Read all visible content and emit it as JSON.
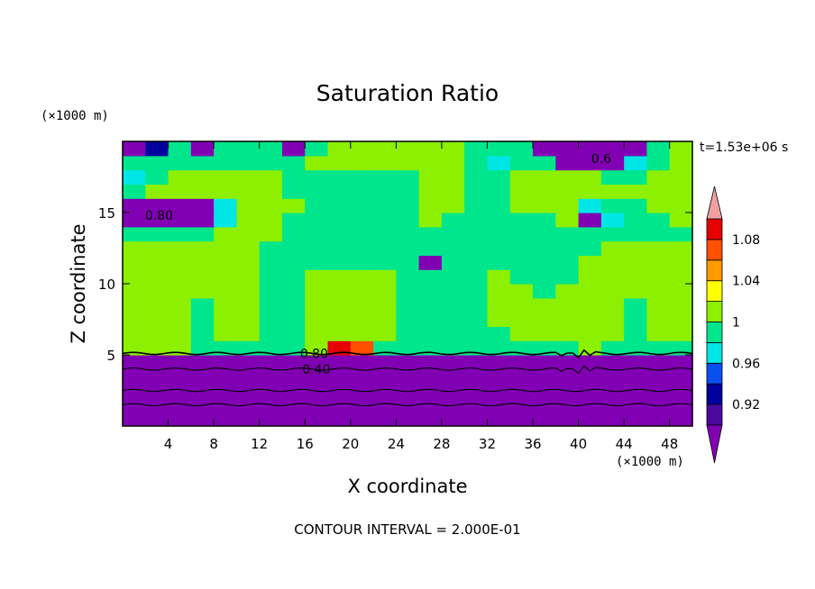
{
  "chart_data": {
    "type": "heatmap",
    "title": "Saturation Ratio",
    "xlabel": "X coordinate",
    "ylabel": "Z coordinate",
    "x_unit": "(×1000 m)",
    "y_unit": "(×1000 m)",
    "time_label": "t=1.53e+06 s",
    "footer": "CONTOUR INTERVAL = 2.000E-01",
    "xlim": [
      0,
      50
    ],
    "ylim": [
      0,
      20
    ],
    "xticks": [
      4,
      8,
      12,
      16,
      20,
      24,
      28,
      32,
      36,
      40,
      44,
      48
    ],
    "yticks": [
      5,
      10,
      15
    ],
    "contour_labels": [
      {
        "text": "0.80",
        "x": 3.2,
        "z": 14.8
      },
      {
        "text": "0.80",
        "x": 16.8,
        "z": 5.1
      },
      {
        "text": "0.40",
        "x": 17.0,
        "z": 4.0
      },
      {
        "text": "0.6",
        "x": 42.0,
        "z": 18.8
      }
    ],
    "colorbar": {
      "labels": [
        "1.08",
        "1.04",
        "1",
        "0.96",
        "0.92"
      ],
      "levels": [
        0.9,
        0.92,
        0.94,
        0.96,
        0.98,
        1.0,
        1.02,
        1.04,
        1.06,
        1.08,
        1.1
      ],
      "colors": [
        "#4a0a9e",
        "#00009e",
        "#0a50f0",
        "#00e6e6",
        "#00e68c",
        "#8cf000",
        "#ffff00",
        "#ff9a00",
        "#ff5000",
        "#e60000",
        "#f0a0a0"
      ],
      "under_color": "#8200b4",
      "over_color": "#f0a0a0"
    },
    "rows": {
      "z": [
        0.5,
        1.5,
        2.5,
        3.5,
        4.5,
        5.5,
        6.5,
        7.5,
        8.5,
        9.5,
        10.5,
        11.5,
        12.5,
        13.5,
        14.5,
        15.5,
        16.5,
        17.5,
        18.5,
        19.5
      ],
      "x": [
        1,
        3,
        5,
        7,
        9,
        11,
        13,
        15,
        17,
        19,
        21,
        23,
        25,
        27,
        29,
        31,
        33,
        35,
        37,
        39,
        41,
        43,
        45,
        47,
        49
      ],
      "values": [
        [
          0.1,
          0.1,
          0.1,
          0.1,
          0.1,
          0.1,
          0.1,
          0.1,
          0.1,
          0.1,
          0.1,
          0.1,
          0.1,
          0.1,
          0.1,
          0.1,
          0.1,
          0.1,
          0.1,
          0.1,
          0.1,
          0.1,
          0.1,
          0.1,
          0.1
        ],
        [
          0.2,
          0.2,
          0.2,
          0.2,
          0.2,
          0.2,
          0.2,
          0.2,
          0.2,
          0.2,
          0.2,
          0.2,
          0.2,
          0.2,
          0.2,
          0.2,
          0.2,
          0.2,
          0.2,
          0.2,
          0.2,
          0.2,
          0.2,
          0.2,
          0.2
        ],
        [
          0.3,
          0.3,
          0.3,
          0.3,
          0.3,
          0.3,
          0.3,
          0.3,
          0.3,
          0.3,
          0.3,
          0.3,
          0.3,
          0.3,
          0.3,
          0.3,
          0.3,
          0.3,
          0.3,
          0.3,
          0.3,
          0.3,
          0.3,
          0.3,
          0.3
        ],
        [
          0.45,
          0.45,
          0.45,
          0.45,
          0.45,
          0.45,
          0.45,
          0.45,
          0.45,
          0.45,
          0.45,
          0.45,
          0.45,
          0.45,
          0.45,
          0.45,
          0.45,
          0.45,
          0.45,
          0.45,
          0.45,
          0.45,
          0.45,
          0.45,
          0.45
        ],
        [
          0.75,
          0.75,
          0.75,
          0.75,
          0.75,
          0.75,
          0.75,
          0.75,
          0.75,
          0.75,
          0.75,
          0.75,
          0.75,
          0.75,
          0.75,
          0.75,
          0.75,
          0.75,
          0.75,
          0.75,
          0.75,
          0.75,
          0.75,
          0.75,
          0.75
        ],
        [
          1.01,
          1.01,
          1.01,
          0.99,
          0.99,
          0.99,
          0.99,
          0.99,
          1.0,
          1.09,
          1.06,
          0.99,
          0.99,
          0.99,
          0.99,
          0.99,
          0.99,
          0.99,
          0.99,
          0.99,
          1.01,
          0.99,
          0.99,
          0.99,
          0.99
        ],
        [
          1.01,
          1.01,
          1.01,
          0.99,
          1.01,
          1.01,
          0.99,
          0.99,
          1.01,
          1.01,
          1.01,
          1.01,
          0.99,
          0.99,
          0.99,
          0.99,
          0.99,
          1.01,
          1.01,
          1.01,
          1.01,
          1.01,
          0.99,
          1.01,
          1.01
        ],
        [
          1.01,
          1.01,
          1.01,
          0.99,
          1.01,
          1.01,
          0.99,
          0.99,
          1.01,
          1.01,
          1.01,
          1.01,
          0.99,
          0.99,
          0.99,
          0.99,
          1.01,
          1.01,
          1.01,
          1.01,
          1.01,
          1.01,
          0.99,
          1.01,
          1.01
        ],
        [
          1.01,
          1.01,
          1.01,
          0.99,
          1.01,
          1.01,
          0.99,
          0.99,
          1.01,
          1.01,
          1.01,
          1.01,
          0.99,
          0.99,
          0.99,
          0.99,
          1.01,
          1.01,
          1.01,
          1.01,
          1.01,
          1.01,
          0.99,
          1.01,
          1.01
        ],
        [
          1.01,
          1.01,
          1.01,
          1.01,
          1.01,
          1.01,
          0.99,
          0.99,
          1.01,
          1.01,
          1.01,
          1.01,
          0.99,
          0.99,
          0.99,
          0.99,
          1.01,
          1.01,
          0.99,
          1.01,
          1.01,
          1.01,
          1.01,
          1.01,
          1.01
        ],
        [
          1.01,
          1.01,
          1.01,
          1.01,
          1.01,
          1.01,
          0.99,
          0.99,
          1.01,
          1.01,
          1.01,
          1.01,
          0.99,
          0.99,
          0.99,
          0.99,
          1.01,
          0.99,
          0.99,
          0.99,
          1.01,
          1.01,
          1.01,
          1.01,
          1.01
        ],
        [
          1.01,
          1.01,
          1.01,
          1.01,
          1.01,
          1.01,
          0.99,
          0.99,
          0.99,
          0.99,
          0.99,
          0.99,
          0.99,
          0.7,
          0.99,
          0.99,
          0.99,
          0.99,
          0.99,
          0.99,
          1.01,
          1.01,
          1.01,
          1.01,
          1.01
        ],
        [
          1.01,
          1.01,
          1.01,
          1.01,
          1.01,
          1.01,
          0.99,
          0.99,
          0.99,
          0.99,
          0.99,
          0.99,
          0.99,
          0.99,
          0.99,
          0.99,
          0.99,
          0.99,
          0.99,
          0.99,
          0.99,
          1.01,
          1.01,
          1.01,
          1.01
        ],
        [
          0.99,
          0.99,
          0.99,
          0.99,
          1.01,
          1.01,
          1.01,
          0.99,
          0.99,
          0.99,
          0.99,
          0.99,
          0.99,
          0.99,
          0.99,
          0.99,
          0.99,
          0.99,
          0.99,
          0.99,
          0.99,
          0.99,
          0.99,
          0.99,
          0.99
        ],
        [
          0.7,
          0.7,
          0.7,
          0.75,
          0.97,
          1.01,
          1.01,
          0.99,
          0.99,
          0.99,
          0.99,
          0.99,
          0.99,
          1.01,
          0.99,
          0.99,
          0.99,
          0.99,
          0.99,
          1.01,
          0.7,
          0.97,
          0.99,
          0.99,
          1.01
        ],
        [
          0.7,
          0.7,
          0.7,
          0.75,
          0.97,
          1.01,
          1.01,
          1.01,
          0.99,
          0.99,
          0.99,
          0.99,
          0.99,
          1.01,
          1.01,
          0.99,
          0.99,
          1.01,
          1.01,
          1.01,
          0.97,
          0.99,
          0.99,
          1.01,
          1.01
        ],
        [
          0.99,
          1.01,
          1.01,
          1.01,
          1.01,
          1.01,
          1.01,
          0.99,
          0.99,
          0.99,
          0.99,
          0.99,
          0.99,
          1.01,
          1.01,
          0.99,
          0.99,
          1.01,
          1.01,
          1.01,
          1.01,
          1.01,
          1.01,
          1.01,
          1.01
        ],
        [
          0.96,
          0.99,
          1.01,
          1.01,
          1.01,
          1.01,
          1.01,
          0.99,
          0.99,
          0.99,
          0.99,
          0.99,
          0.99,
          1.01,
          1.01,
          0.99,
          0.99,
          1.01,
          1.01,
          1.01,
          1.01,
          0.99,
          0.99,
          1.01,
          1.01
        ],
        [
          0.99,
          0.99,
          0.99,
          0.99,
          0.99,
          0.99,
          0.99,
          0.99,
          1.01,
          1.01,
          1.01,
          1.01,
          1.01,
          1.01,
          1.01,
          0.99,
          0.97,
          0.99,
          0.99,
          0.7,
          0.7,
          0.7,
          0.97,
          0.99,
          1.01
        ],
        [
          0.7,
          0.93,
          0.99,
          0.7,
          0.99,
          0.99,
          0.99,
          0.7,
          0.99,
          1.01,
          1.01,
          1.01,
          1.01,
          1.01,
          1.01,
          0.99,
          0.99,
          0.99,
          0.7,
          0.7,
          0.7,
          0.7,
          0.7,
          0.99,
          1.01
        ]
      ]
    }
  }
}
